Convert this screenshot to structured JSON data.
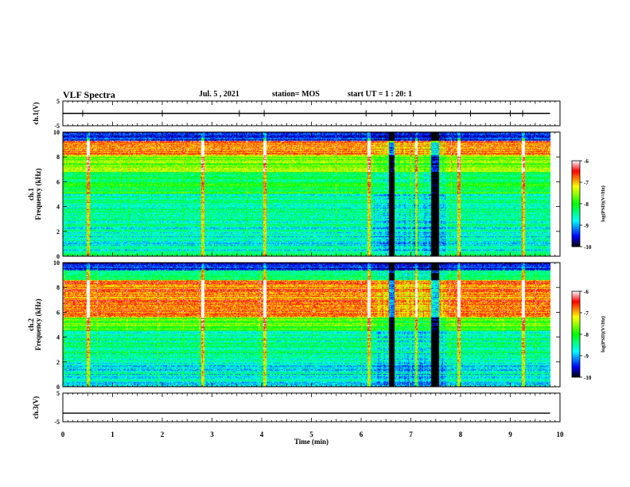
{
  "header": {
    "title": "VLF Spectra",
    "date": "Jul. 5 , 2021",
    "station": "station= MOS",
    "start": "start UT = 1 : 20: 1"
  },
  "chart_data": [
    {
      "type": "line",
      "panel": "ch1-voltage",
      "ylabel": "ch.1(V)",
      "ylim": [
        -5,
        5
      ],
      "yticks": [
        "5",
        "-5"
      ],
      "xlim": [
        0,
        10
      ],
      "series": [
        {
          "x": [
            0,
            9.8
          ],
          "values": [
            0,
            0
          ]
        }
      ]
    },
    {
      "type": "heatmap",
      "panel": "ch1-spectrogram",
      "ylabel": "ch.1\nFrequency (kHz)",
      "ylim": [
        0,
        10
      ],
      "yticks": [
        "0",
        "2",
        "4",
        "6",
        "8",
        "10"
      ],
      "xlim": [
        0,
        10
      ],
      "colorbar": {
        "label": "log(PSD)(V²/Hz)",
        "range": [
          -10,
          -6
        ],
        "ticks": [
          "-6",
          "-7",
          "-8",
          "-9",
          "-10"
        ]
      }
    },
    {
      "type": "heatmap",
      "panel": "ch2-spectrogram",
      "ylabel": "ch.2\nFrequency (kHz)",
      "ylim": [
        0,
        10
      ],
      "yticks": [
        "0",
        "2",
        "4",
        "6",
        "8",
        "10"
      ],
      "xlim": [
        0,
        10
      ],
      "colorbar": {
        "label": "log(PSD)(V²/Hz)",
        "range": [
          -10,
          -6
        ],
        "ticks": [
          "-6",
          "-7",
          "-8",
          "-9",
          "-10"
        ]
      }
    },
    {
      "type": "line",
      "panel": "ch3-voltage",
      "ylabel": "ch.3(V)",
      "ylim": [
        -5,
        5
      ],
      "yticks": [
        "5",
        "-5"
      ],
      "xlim": [
        0,
        10
      ],
      "series": [
        {
          "x": [
            0,
            9.8
          ],
          "values": [
            -2,
            -2
          ]
        }
      ]
    }
  ],
  "xaxis": {
    "label": "Time (min)",
    "ticks": [
      "0",
      "1",
      "2",
      "3",
      "4",
      "5",
      "6",
      "7",
      "8",
      "9",
      "10"
    ]
  }
}
